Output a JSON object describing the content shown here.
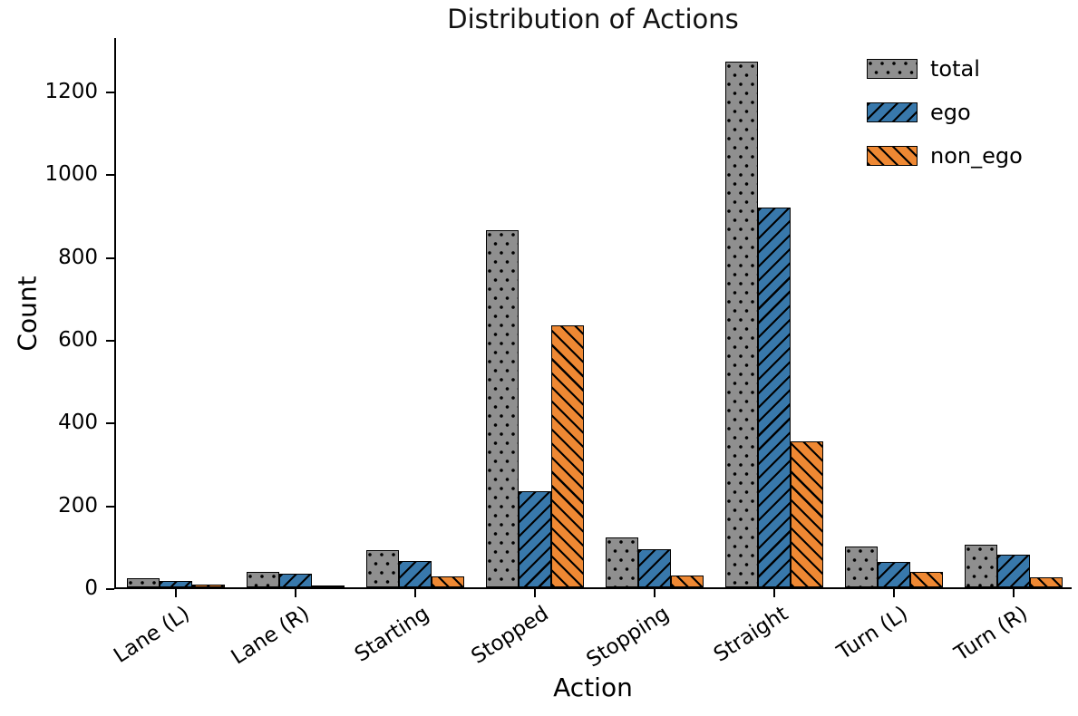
{
  "chart_data": {
    "type": "bar",
    "title": "Distribution of Actions",
    "xlabel": "Action",
    "ylabel": "Count",
    "ylim": [
      0,
      1331
    ],
    "yticks": [
      0,
      200,
      400,
      600,
      800,
      1000,
      1200
    ],
    "grid": false,
    "legend_position": "upper right",
    "categories": [
      "Lane (L)",
      "Lane (R)",
      "Starting",
      "Stopped",
      "Stopping",
      "Straight",
      "Turn (L)",
      "Turn (R)"
    ],
    "series": [
      {
        "name": "total",
        "color": "#8F8F8F",
        "hatch": "dots",
        "values": [
          22,
          37,
          90,
          863,
          121,
          1269,
          98,
          103
        ]
      },
      {
        "name": "ego",
        "color": "#3878AB",
        "hatch": "forward",
        "values": [
          16,
          32,
          64,
          231,
          93,
          917,
          61,
          79
        ]
      },
      {
        "name": "non_ego",
        "color": "#EE8833",
        "hatch": "backward",
        "values": [
          6,
          5,
          26,
          632,
          28,
          352,
          37,
          24
        ]
      }
    ]
  }
}
